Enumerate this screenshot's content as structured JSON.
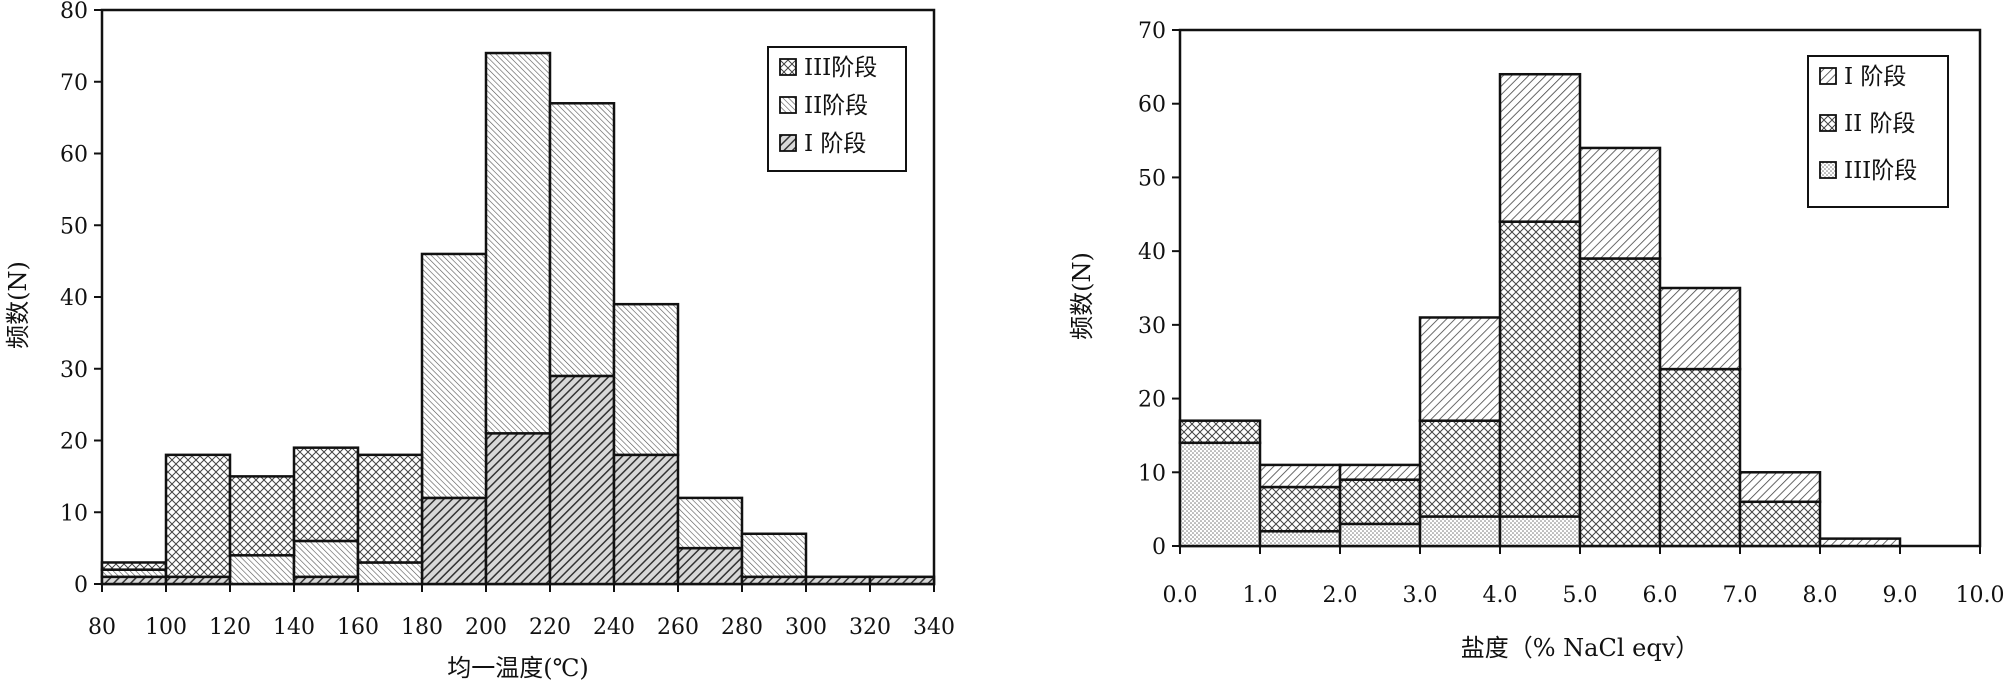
{
  "chart_data": [
    {
      "type": "bar",
      "stacked": true,
      "title": "",
      "xlabel": "均一温度(℃)",
      "ylabel": "频数(N)",
      "xlim": [
        80,
        340
      ],
      "ylim": [
        0,
        80
      ],
      "x_ticks": [
        "80",
        "100",
        "120",
        "140",
        "160",
        "180",
        "200",
        "220",
        "240",
        "260",
        "280",
        "300",
        "320",
        "340"
      ],
      "y_ticks": [
        "0",
        "10",
        "20",
        "30",
        "40",
        "50",
        "60",
        "70",
        "80"
      ],
      "bin_edges": [
        80,
        100,
        120,
        140,
        160,
        180,
        200,
        220,
        240,
        260,
        280,
        300,
        320,
        340
      ],
      "series": [
        {
          "name": "I 阶段",
          "pattern": "dense-diagonal",
          "values": [
            1,
            1,
            0,
            1,
            0,
            12,
            21,
            29,
            18,
            5,
            1,
            1,
            1
          ]
        },
        {
          "name": "II阶段",
          "pattern": "fine-diagonal",
          "values": [
            1,
            0,
            4,
            5,
            3,
            34,
            53,
            38,
            21,
            7,
            6,
            0,
            0
          ]
        },
        {
          "name": "III阶段",
          "pattern": "cross-hatch",
          "values": [
            1,
            17,
            11,
            13,
            15,
            0,
            0,
            0,
            0,
            0,
            0,
            0,
            0
          ]
        }
      ],
      "legend": {
        "placement": "top-right",
        "order": [
          "III阶段",
          "II阶段",
          "I 阶段"
        ]
      },
      "grid": false
    },
    {
      "type": "bar",
      "stacked": true,
      "title": "",
      "xlabel": "盐度（% NaCl eqv）",
      "ylabel": "频数(N)",
      "xlim": [
        0,
        10
      ],
      "ylim": [
        0,
        70
      ],
      "x_ticks": [
        "0.0",
        "1.0",
        "2.0",
        "3.0",
        "4.0",
        "5.0",
        "6.0",
        "7.0",
        "8.0",
        "9.0",
        "10.0"
      ],
      "y_ticks": [
        "0",
        "10",
        "20",
        "30",
        "40",
        "50",
        "60",
        "70"
      ],
      "bin_edges": [
        0,
        1,
        2,
        3,
        4,
        5,
        6,
        7,
        8,
        9,
        10
      ],
      "series": [
        {
          "name": "III阶段",
          "pattern": "dots",
          "values": [
            14,
            2,
            3,
            4,
            4,
            0,
            0,
            0,
            0,
            0
          ]
        },
        {
          "name": "II 阶段",
          "pattern": "cross-hatch",
          "values": [
            3,
            6,
            6,
            13,
            40,
            39,
            24,
            6,
            0,
            0
          ]
        },
        {
          "name": "I 阶段",
          "pattern": "diagonal",
          "values": [
            0,
            3,
            2,
            14,
            20,
            15,
            11,
            4,
            1,
            0
          ]
        }
      ],
      "legend": {
        "placement": "top-right",
        "order": [
          "I 阶段",
          "II 阶段",
          "III阶段"
        ]
      },
      "grid": false
    }
  ]
}
